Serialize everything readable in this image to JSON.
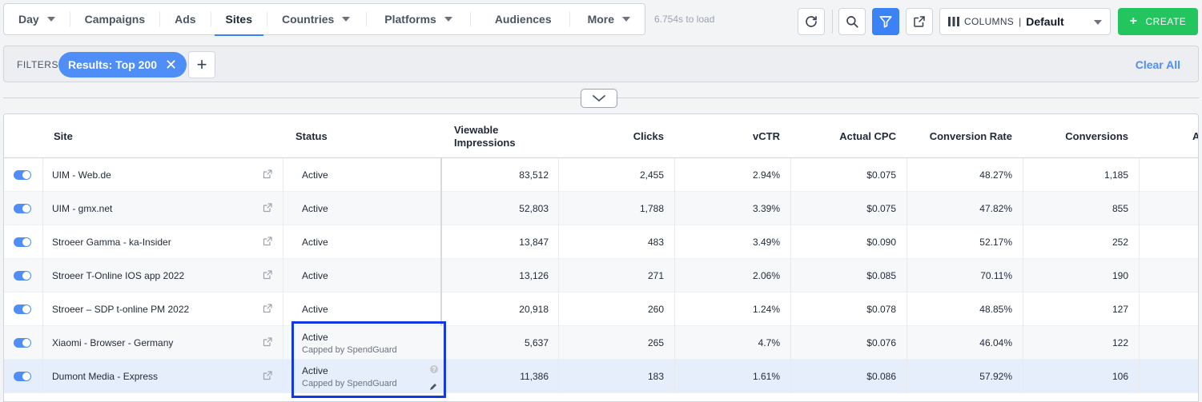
{
  "nav": {
    "tabs": [
      {
        "label": "Day",
        "dropdown": true
      },
      {
        "label": "Campaigns",
        "dropdown": false
      },
      {
        "label": "Ads",
        "dropdown": false
      },
      {
        "label": "Sites",
        "dropdown": false,
        "active": true
      },
      {
        "label": "Countries",
        "dropdown": true
      },
      {
        "label": "Platforms",
        "dropdown": true
      },
      {
        "label": "Audiences",
        "dropdown": false
      },
      {
        "label": "More",
        "dropdown": true
      }
    ],
    "load_time": "6.754s to load"
  },
  "toolbar": {
    "refresh_icon": "refresh-icon",
    "search_icon": "search-icon",
    "filter_icon": "filter-icon",
    "export_icon": "share-icon",
    "columns_label": "COLUMNS",
    "columns_value": "Default",
    "create_label": "CREATE"
  },
  "filters": {
    "label": "FILTERS",
    "chip_label": "Results: Top 200",
    "clear_all": "Clear All"
  },
  "table": {
    "headers": {
      "site": "Site",
      "status": "Status",
      "impressions_1": "Viewable",
      "impressions_2": "Impressions",
      "clicks": "Clicks",
      "vctr": "vCTR",
      "cpc": "Actual CPC",
      "conv_rate": "Conversion Rate",
      "conversions": "Conversions",
      "next": "A"
    },
    "rows": [
      {
        "site": "UIM - Web.de",
        "status": "Active",
        "sub": "",
        "impressions": "83,512",
        "clicks": "2,455",
        "vctr": "2.94%",
        "cpc": "$0.075",
        "conv_rate": "48.27%",
        "conversions": "1,185"
      },
      {
        "site": "UIM - gmx.net",
        "status": "Active",
        "sub": "",
        "impressions": "52,803",
        "clicks": "1,788",
        "vctr": "3.39%",
        "cpc": "$0.075",
        "conv_rate": "47.82%",
        "conversions": "855"
      },
      {
        "site": "Stroeer Gamma - ka-Insider",
        "status": "Active",
        "sub": "",
        "impressions": "13,847",
        "clicks": "483",
        "vctr": "3.49%",
        "cpc": "$0.090",
        "conv_rate": "52.17%",
        "conversions": "252"
      },
      {
        "site": "Stroeer T-Online IOS app 2022",
        "status": "Active",
        "sub": "",
        "impressions": "13,126",
        "clicks": "271",
        "vctr": "2.06%",
        "cpc": "$0.085",
        "conv_rate": "70.11%",
        "conversions": "190"
      },
      {
        "site": "Stroeer – SDP t-online PM 2022",
        "status": "Active",
        "sub": "",
        "impressions": "20,918",
        "clicks": "260",
        "vctr": "1.24%",
        "cpc": "$0.078",
        "conv_rate": "48.85%",
        "conversions": "127"
      },
      {
        "site": "Xiaomi - Browser - Germany",
        "status": "Active",
        "sub": "Capped by SpendGuard",
        "impressions": "5,637",
        "clicks": "265",
        "vctr": "4.7%",
        "cpc": "$0.076",
        "conv_rate": "46.04%",
        "conversions": "122"
      },
      {
        "site": "Dumont Media - Express",
        "status": "Active",
        "sub": "Capped by SpendGuard",
        "impressions": "11,386",
        "clicks": "183",
        "vctr": "1.61%",
        "cpc": "$0.086",
        "conv_rate": "57.92%",
        "conversions": "106"
      }
    ]
  },
  "colors": {
    "accent": "#4f8ef7",
    "create": "#22c55e",
    "highlight": "#1338e8"
  }
}
